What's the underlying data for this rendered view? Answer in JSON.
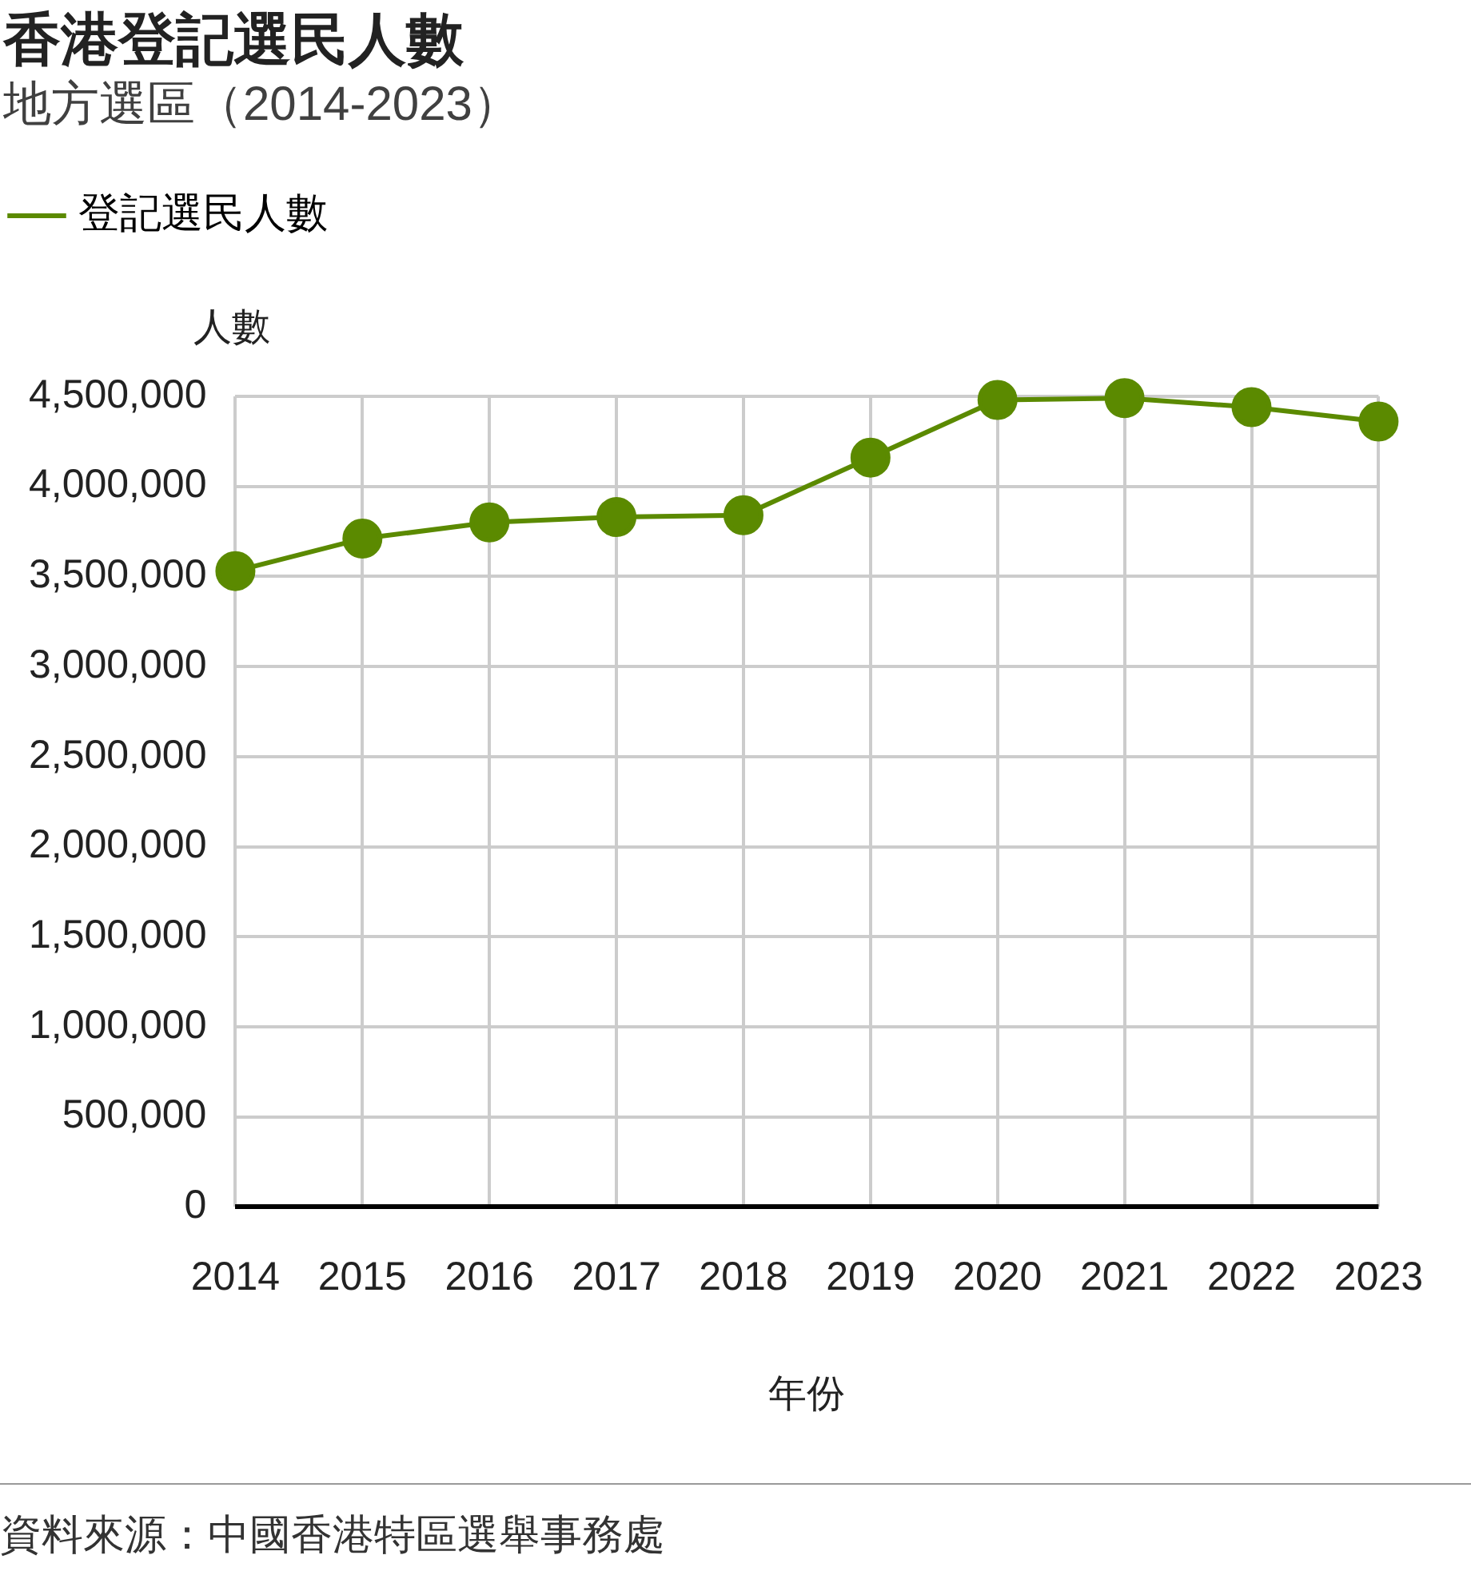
{
  "chart_data": {
    "type": "line",
    "title": "香港登記選民人數",
    "subtitle": "地方選區（2014-2023）",
    "ylabel": "人數",
    "xlabel": "年份",
    "categories": [
      "2014",
      "2015",
      "2016",
      "2017",
      "2018",
      "2019",
      "2020",
      "2021",
      "2022",
      "2023"
    ],
    "series": [
      {
        "name": "登記選民人數",
        "color": "#5b8a00",
        "values": [
          3530000,
          3710000,
          3800000,
          3830000,
          3840000,
          4160000,
          4480000,
          4490000,
          4440000,
          4360000
        ]
      }
    ],
    "ylim": [
      0,
      4500000
    ],
    "yticks": [
      {
        "value": 0,
        "label": "0"
      },
      {
        "value": 500000,
        "label": "500,000"
      },
      {
        "value": 1000000,
        "label": "1,000,000"
      },
      {
        "value": 1500000,
        "label": "1,500,000"
      },
      {
        "value": 2000000,
        "label": "2,000,000"
      },
      {
        "value": 2500000,
        "label": "2,500,000"
      },
      {
        "value": 3000000,
        "label": "3,000,000"
      },
      {
        "value": 3500000,
        "label": "3,500,000"
      },
      {
        "value": 4000000,
        "label": "4,000,000"
      },
      {
        "value": 4500000,
        "label": "4,500,000"
      }
    ],
    "grid": true,
    "legend": "top left",
    "marker": "circle",
    "line_style": "solid",
    "annotations": [
      "資料來源：中國香港特區選舉事務處"
    ]
  }
}
